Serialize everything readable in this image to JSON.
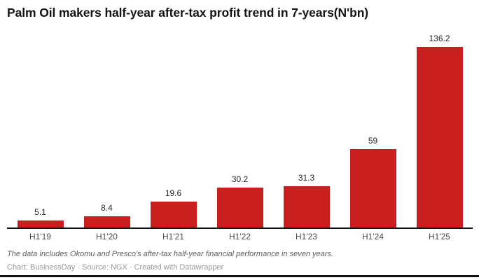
{
  "chart_data": {
    "type": "bar",
    "title": "Palm Oil makers half-year after-tax profit trend in 7-years(N'bn)",
    "categories": [
      "H1'19",
      "H1'20",
      "H1'21",
      "H1'22",
      "H1'23",
      "H1'24",
      "H1'25"
    ],
    "values": [
      5.1,
      8.4,
      19.6,
      30.2,
      31.3,
      59,
      136.2
    ],
    "value_labels": [
      "5.1",
      "8.4",
      "19.6",
      "30.2",
      "31.3",
      "59",
      "136.2"
    ],
    "xlabel": "",
    "ylabel": "",
    "ylim": [
      0,
      145
    ],
    "grid": false,
    "legend": "none",
    "bar_color": "#c8201e",
    "axis_line_color": "#131313"
  },
  "footer": {
    "note": "The data includes Okomu and Presco's after-tax half-year financial performance in seven years.",
    "byline": "Chart: BusinessDay · Source: NGX · Created with Datawrapper"
  }
}
